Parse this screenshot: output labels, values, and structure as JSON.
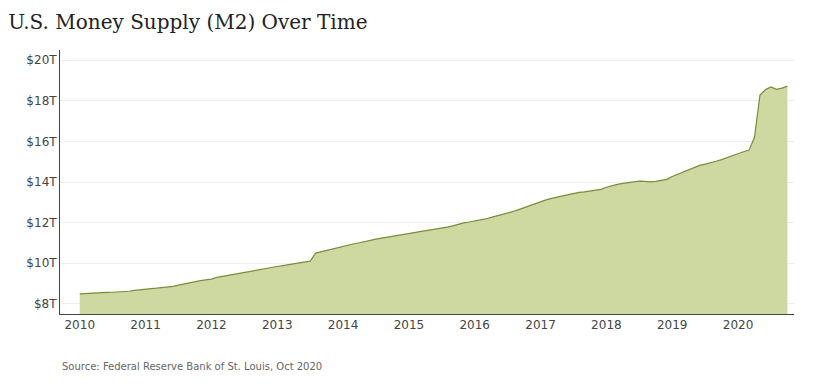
{
  "chart_data": {
    "type": "area",
    "title": "U.S. Money Supply (M2) Over Time",
    "annotations": [
      "Source: Federal Reserve Bank of St. Louis, Oct 2020"
    ],
    "color": "#cdd9a0",
    "grid": "y",
    "x": [
      2010.0,
      2010.083,
      2010.167,
      2010.25,
      2010.333,
      2010.417,
      2010.5,
      2010.583,
      2010.667,
      2010.75,
      2010.833,
      2010.917,
      2011.0,
      2011.083,
      2011.167,
      2011.25,
      2011.333,
      2011.417,
      2011.5,
      2011.583,
      2011.667,
      2011.75,
      2011.833,
      2011.917,
      2012.0,
      2012.083,
      2012.167,
      2012.25,
      2012.333,
      2012.417,
      2012.5,
      2012.583,
      2012.667,
      2012.75,
      2012.833,
      2012.917,
      2013.0,
      2013.083,
      2013.167,
      2013.25,
      2013.333,
      2013.417,
      2013.5,
      2013.583,
      2013.667,
      2013.75,
      2013.833,
      2013.917,
      2014.0,
      2014.083,
      2014.167,
      2014.25,
      2014.333,
      2014.417,
      2014.5,
      2014.583,
      2014.667,
      2014.75,
      2014.833,
      2014.917,
      2015.0,
      2015.083,
      2015.167,
      2015.25,
      2015.333,
      2015.417,
      2015.5,
      2015.583,
      2015.667,
      2015.75,
      2015.833,
      2015.917,
      2016.0,
      2016.083,
      2016.167,
      2016.25,
      2016.333,
      2016.417,
      2016.5,
      2016.583,
      2016.667,
      2016.75,
      2016.833,
      2016.917,
      2017.0,
      2017.083,
      2017.167,
      2017.25,
      2017.333,
      2017.417,
      2017.5,
      2017.583,
      2017.667,
      2017.75,
      2017.833,
      2017.917,
      2018.0,
      2018.083,
      2018.167,
      2018.25,
      2018.333,
      2018.417,
      2018.5,
      2018.583,
      2018.667,
      2018.75,
      2018.833,
      2018.917,
      2019.0,
      2019.083,
      2019.167,
      2019.25,
      2019.333,
      2019.417,
      2019.5,
      2019.583,
      2019.667,
      2019.75,
      2019.833,
      2019.917,
      2020.0,
      2020.083,
      2020.167,
      2020.25,
      2020.333,
      2020.417,
      2020.5,
      2020.583,
      2020.667,
      2020.75
    ],
    "series": [
      {
        "color": "#7a8c3a",
        "values": [
          8490000000000.0,
          8510000000000.0,
          8520000000000.0,
          8530000000000.0,
          8540000000000.0,
          8560000000000.0,
          8570000000000.0,
          8580000000000.0,
          8600000000000.0,
          8620000000000.0,
          8660000000000.0,
          8700000000000.0,
          8730000000000.0,
          8750000000000.0,
          8770000000000.0,
          8790000000000.0,
          8820000000000.0,
          8860000000000.0,
          8920000000000.0,
          8980000000000.0,
          9050000000000.0,
          9100000000000.0,
          9140000000000.0,
          9180000000000.0,
          9220000000000.0,
          9300000000000.0,
          9350000000000.0,
          9400000000000.0,
          9460000000000.0,
          9520000000000.0,
          9570000000000.0,
          9620000000000.0,
          9670000000000.0,
          9720000000000.0,
          9760000000000.0,
          9800000000000.0,
          9840000000000.0,
          9880000000000.0,
          9930000000000.0,
          9970000000000.0,
          10010000000000.0,
          10050000000000.0,
          10100000000000.0,
          10500000000000.0,
          10570000000000.0,
          10630000000000.0,
          10690000000000.0,
          10760000000000.0,
          10840000000000.0,
          10900000000000.0,
          10960000000000.0,
          11010000000000.0,
          11080000000000.0,
          11140000000000.0,
          11190000000000.0,
          11240000000000.0,
          11280000000000.0,
          11330000000000.0,
          11380000000000.0,
          11430000000000.0,
          11470000000000.0,
          11510000000000.0,
          11560000000000.0,
          11600000000000.0,
          11650000000000.0,
          11700000000000.0,
          11740000000000.0,
          11780000000000.0,
          11840000000000.0,
          11920000000000.0,
          11990000000000.0,
          12030000000000.0,
          12070000000000.0,
          12120000000000.0,
          12180000000000.0,
          12260000000000.0,
          12330000000000.0,
          12390000000000.0,
          12470000000000.0,
          12550000000000.0,
          12640000000000.0,
          12740000000000.0,
          12840000000000.0,
          12940000000000.0,
          13030000000000.0,
          13120000000000.0,
          13190000000000.0,
          13250000000000.0,
          13310000000000.0,
          13380000000000.0,
          13440000000000.0,
          13490000000000.0,
          13510000000000.0,
          13550000000000.0,
          13590000000000.0,
          13640000000000.0,
          13740000000000.0,
          13820000000000.0,
          13880000000000.0,
          13930000000000.0,
          13970000000000.0,
          14010000000000.0,
          14040000000000.0,
          14030000000000.0,
          14010000000000.0,
          14030000000000.0,
          14070000000000.0,
          14130000000000.0,
          14270000000000.0,
          14380000000000.0,
          14490000000000.0,
          14590000000000.0,
          14720000000000.0,
          14820000000000.0,
          14880000000000.0,
          14940000000000.0,
          15020000000000.0,
          15100000000000.0,
          15200000000000.0,
          15320000000000.0,
          15410000000000.0,
          15490000000000.0,
          15570000000000.0,
          16200000000000.0,
          18280000000000.0,
          18550000000000.0,
          18680000000000.0,
          18560000000000.0,
          18620000000000.0,
          18720000000000.0
        ]
      }
    ],
    "xlim": [
      2009.7,
      2020.85
    ],
    "xticks": [
      2010,
      2011,
      2012,
      2013,
      2014,
      2015,
      2016,
      2017,
      2018,
      2019,
      2020
    ],
    "ylim": [
      7500000000000.0,
      20500000000000.0
    ],
    "yticks": [
      {
        "value": 8000000000000.0,
        "label": "$8T"
      },
      {
        "value": 10000000000000.0,
        "label": "$10T"
      },
      {
        "value": 12000000000000.0,
        "label": "$12T"
      },
      {
        "value": 14000000000000.0,
        "label": "$14T"
      },
      {
        "value": 16000000000000.0,
        "label": "$16T"
      },
      {
        "value": 18000000000000.0,
        "label": "$18T"
      },
      {
        "value": 20000000000000.0,
        "label": "$20T"
      }
    ]
  }
}
